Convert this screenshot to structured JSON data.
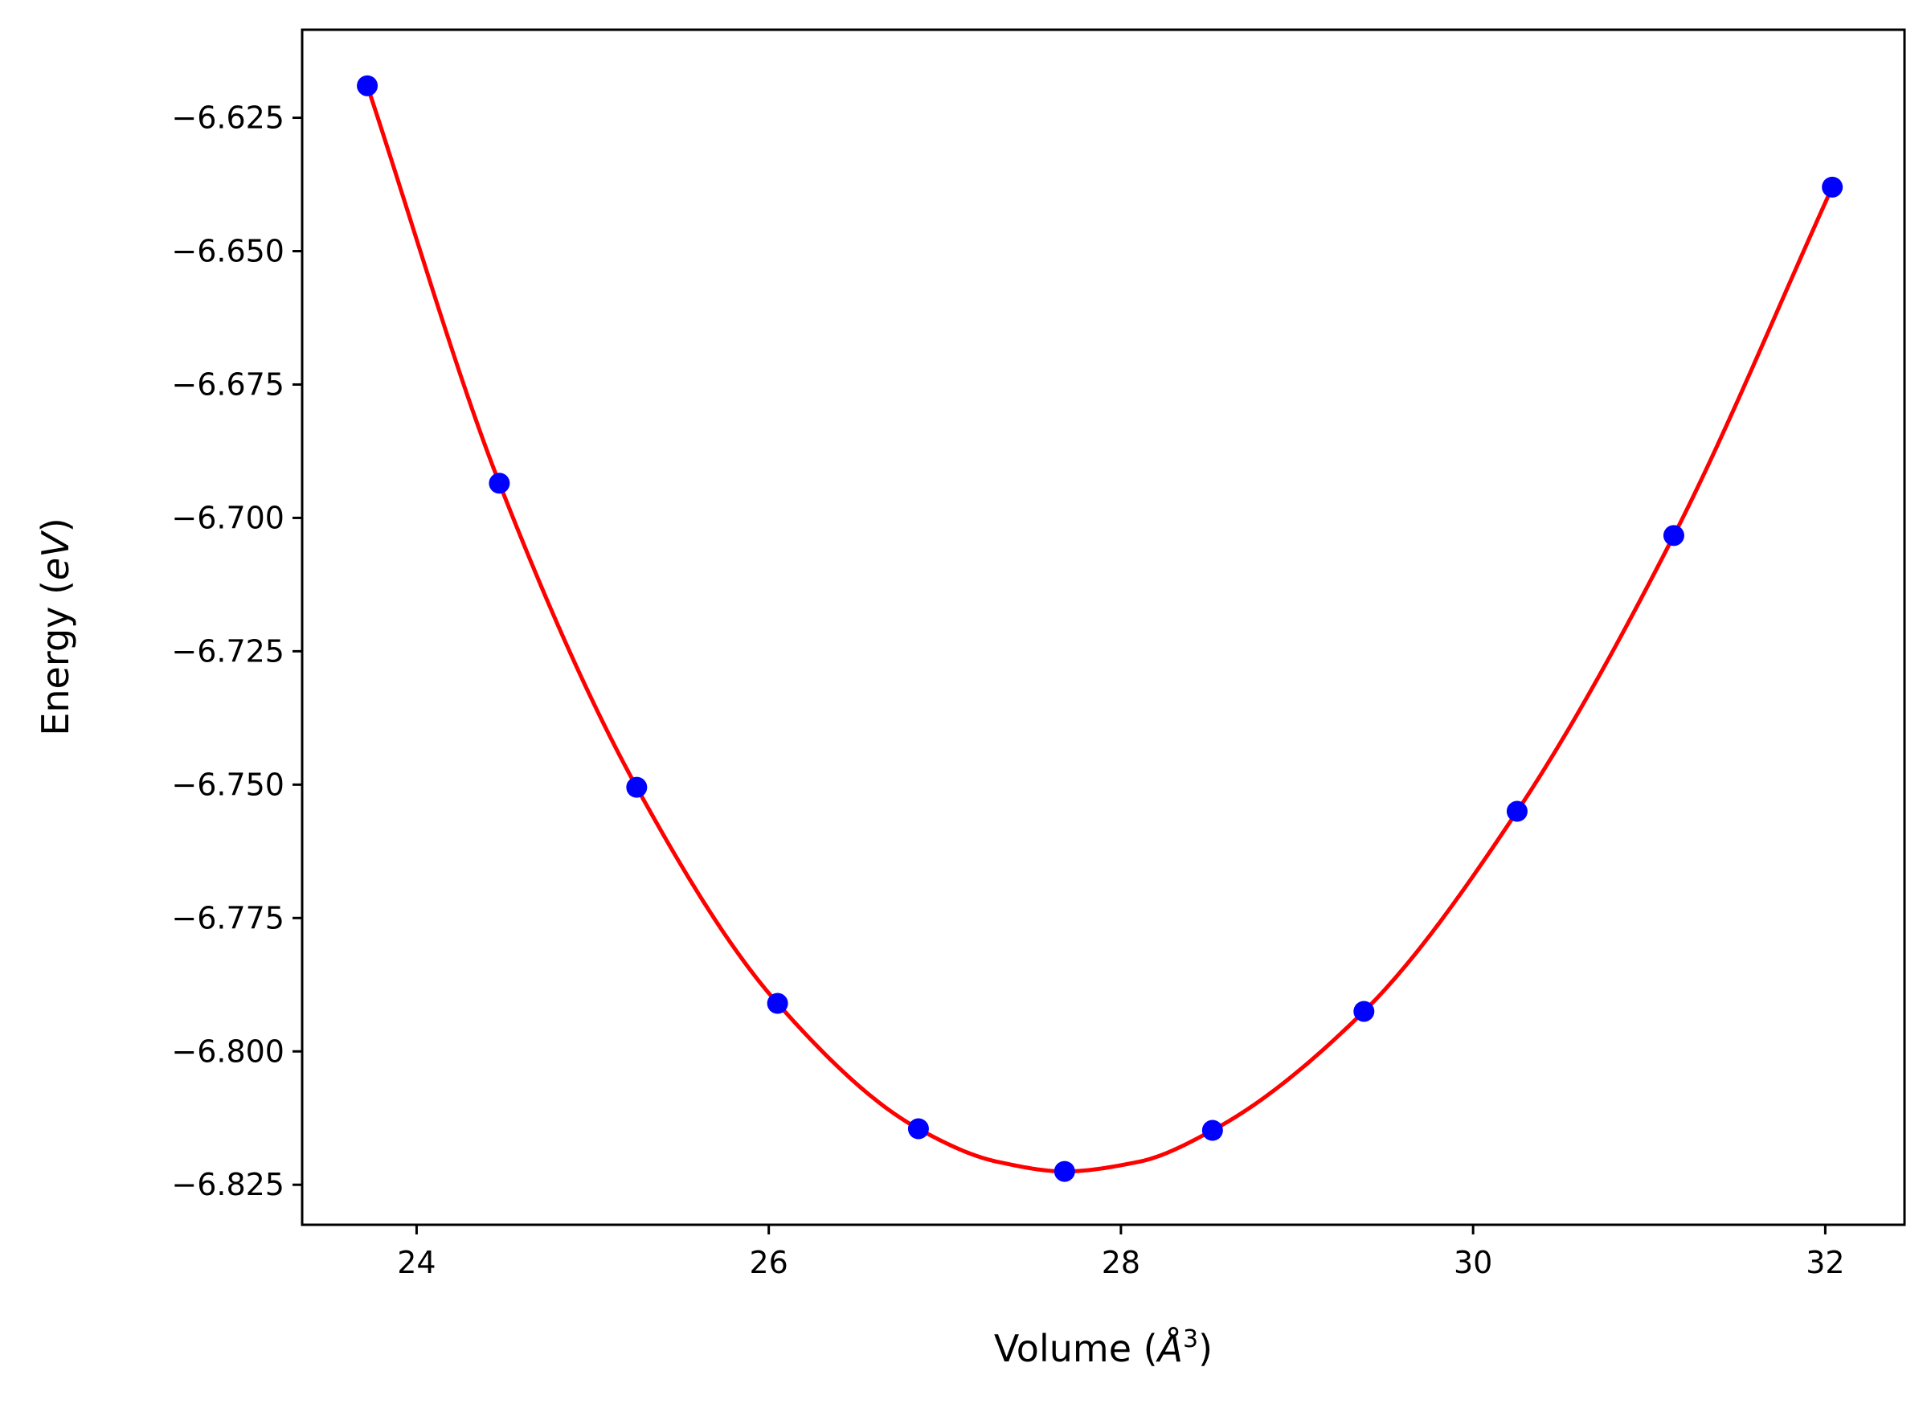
{
  "chart_data": {
    "type": "scatter",
    "title": "",
    "xlabel": "Volume (",
    "xlabel_unit": "Å",
    "xlabel_power": "3",
    "xlabel_close": ")",
    "ylabel": "Energy (",
    "ylabel_unit": "eV",
    "ylabel_close": ")",
    "xlim": [
      23.35,
      32.45
    ],
    "ylim": [
      -6.8325,
      -6.6085
    ],
    "x_ticks": [
      24,
      26,
      28,
      30,
      32
    ],
    "x_tick_labels": [
      "24",
      "26",
      "28",
      "30",
      "32"
    ],
    "y_ticks": [
      -6.625,
      -6.65,
      -6.675,
      -6.7,
      -6.725,
      -6.75,
      -6.775,
      -6.8,
      -6.825
    ],
    "y_tick_labels": [
      "−6.625",
      "−6.650",
      "−6.675",
      "−6.700",
      "−6.725",
      "−6.750",
      "−6.775",
      "−6.800",
      "−6.825"
    ],
    "grid": false,
    "series": [
      {
        "kind": "scatter",
        "color": "#0000ff",
        "x": [
          23.72,
          24.47,
          25.25,
          26.05,
          26.85,
          27.68,
          28.52,
          29.38,
          30.25,
          31.14,
          32.04
        ],
        "y": [
          -6.619,
          -6.6935,
          -6.7505,
          -6.791,
          -6.8145,
          -6.8225,
          -6.8148,
          -6.7925,
          -6.755,
          -6.7033,
          -6.638
        ]
      },
      {
        "kind": "line",
        "color": "#ff0000",
        "fit_points": [
          [
            23.72,
            -6.619
          ],
          [
            24.47,
            -6.6935
          ],
          [
            25.25,
            -6.7505
          ],
          [
            26.05,
            -6.791
          ],
          [
            26.85,
            -6.8145
          ],
          [
            27.3,
            -6.8207
          ],
          [
            27.68,
            -6.8225
          ],
          [
            28.1,
            -6.8207
          ],
          [
            28.52,
            -6.8148
          ],
          [
            29.38,
            -6.7925
          ],
          [
            30.25,
            -6.755
          ],
          [
            31.14,
            -6.7033
          ],
          [
            32.04,
            -6.638
          ]
        ]
      }
    ]
  }
}
